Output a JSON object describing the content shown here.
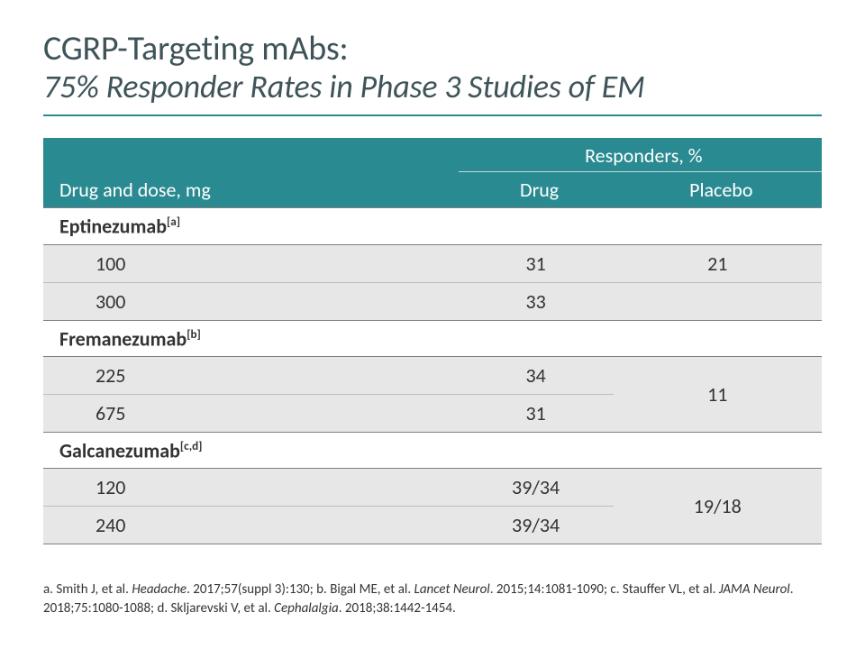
{
  "title": {
    "line1": "CGRP-Targeting mAbs:",
    "line2": "75% Responder Rates in Phase 3 Studies of EM"
  },
  "table": {
    "header": {
      "drug_dose": "Drug and dose, mg",
      "responders_group": "Responders, %",
      "drug": "Drug",
      "placebo": "Placebo"
    },
    "groups": [
      {
        "name": "Eptinezumab",
        "sup": "[a]",
        "rows": [
          {
            "dose": "100",
            "drug": "31",
            "placebo": "21"
          },
          {
            "dose": "300",
            "drug": "33",
            "placebo": ""
          }
        ],
        "placebo_merged": false
      },
      {
        "name": "Fremanezumab",
        "sup": "[b]",
        "rows": [
          {
            "dose": "225",
            "drug": "34"
          },
          {
            "dose": "675",
            "drug": "31"
          }
        ],
        "placebo_merged": true,
        "placebo": "11"
      },
      {
        "name": "Galcanezumab",
        "sup": "[c,d]",
        "rows": [
          {
            "dose": "120",
            "drug": "39/34"
          },
          {
            "dose": "240",
            "drug": "39/34"
          }
        ],
        "placebo_merged": true,
        "placebo": "19/18"
      }
    ]
  },
  "footnote": {
    "a_pre": "a. Smith J, et al. ",
    "a_ital": "Headache",
    "a_post": ". 2017;57(suppl 3):130; ",
    "b_pre": "b. Bigal ME, et al. ",
    "b_ital": "Lancet Neurol",
    "b_post": ". 2015;14:1081-1090; ",
    "c_pre": "c. Stauffer VL, et al. ",
    "c_ital": "JAMA Neurol",
    "c_post": ". 2018;75:1080-1088; ",
    "d_pre": "d. Skljarevski V, et al. ",
    "d_ital": "Cephalalgia",
    "d_post": ". 2018;38:1442-1454."
  },
  "colors": {
    "teal": "#2a8a91",
    "header_text": "#ffffff",
    "row_gray": "#e7e7e7",
    "rule": "#7f7f7f",
    "title_color": "#3f5459"
  }
}
